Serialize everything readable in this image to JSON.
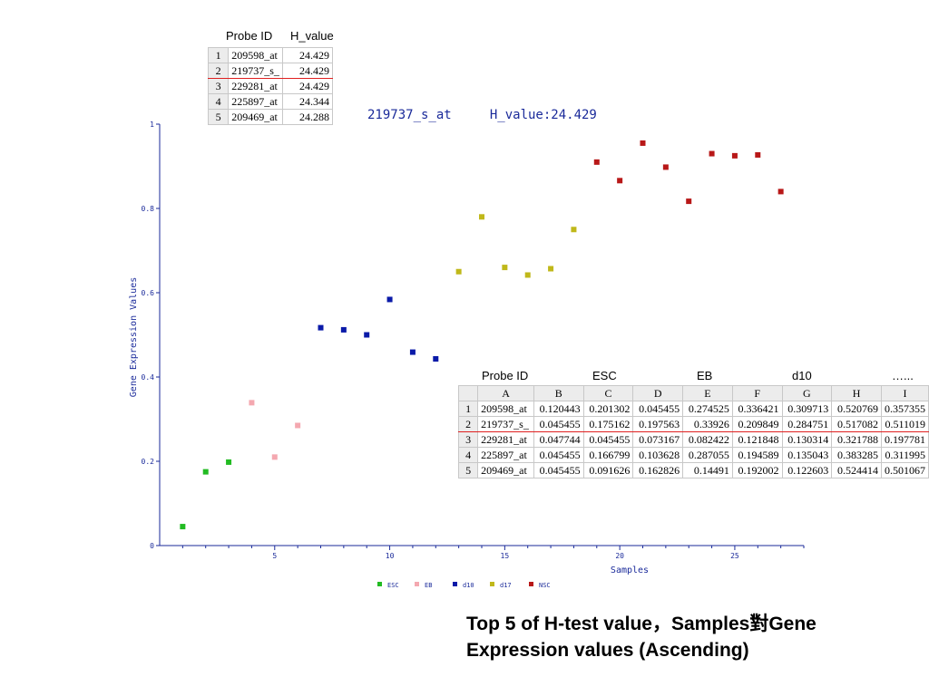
{
  "chart_data": {
    "type": "scatter",
    "annotation": "219737_s_at     H_value:24.429",
    "xlabel": "Samples",
    "ylabel": "Gene Expression Values",
    "xlim": [
      0,
      28
    ],
    "ylim": [
      0,
      1
    ],
    "x_ticks": [
      "5",
      "10",
      "15",
      "20",
      "25"
    ],
    "y_ticks": [
      "0",
      "0.2",
      "0.4",
      "0.6",
      "0.8",
      "1"
    ],
    "legend_position": "bottom",
    "series": [
      {
        "name": "ESC",
        "color": "#22bb22",
        "x": [
          1,
          2,
          3
        ],
        "y": [
          0.045,
          0.175,
          0.198
        ]
      },
      {
        "name": "EB",
        "color": "#f4a8b0",
        "x": [
          4,
          5,
          6
        ],
        "y": [
          0.339,
          0.21,
          0.285
        ]
      },
      {
        "name": "d10",
        "color": "#0a1aa8",
        "x": [
          7,
          8,
          9,
          10,
          11,
          12
        ],
        "y": [
          0.517,
          0.512,
          0.5,
          0.584,
          0.459,
          0.443
        ]
      },
      {
        "name": "d17",
        "color": "#c0b81a",
        "x": [
          13,
          14,
          15,
          16,
          17,
          18
        ],
        "y": [
          0.65,
          0.78,
          0.66,
          0.642,
          0.657,
          0.75
        ]
      },
      {
        "name": "NSC",
        "color": "#b81818",
        "x": [
          19,
          20,
          21,
          22,
          23,
          24,
          25,
          26,
          27
        ],
        "y": [
          0.91,
          0.866,
          0.955,
          0.898,
          0.817,
          0.93,
          0.925,
          0.927,
          0.84
        ]
      }
    ]
  },
  "top_table": {
    "headers": [
      "Probe ID",
      "H_value"
    ],
    "rows": [
      {
        "n": "1",
        "probe": "209598_at",
        "h": "24.429"
      },
      {
        "n": "2",
        "probe": "219737_s_",
        "h": "24.429"
      },
      {
        "n": "3",
        "probe": "229281_at",
        "h": "24.429"
      },
      {
        "n": "4",
        "probe": "225897_at",
        "h": "24.344"
      },
      {
        "n": "5",
        "probe": "209469_at",
        "h": "24.288"
      }
    ]
  },
  "bottom_table": {
    "group_labels": [
      "Probe ID",
      "ESC",
      "EB",
      "d10",
      "…..."
    ],
    "col_letters": [
      "A",
      "B",
      "C",
      "D",
      "E",
      "F",
      "G",
      "H",
      "I"
    ],
    "rows": [
      {
        "n": "1",
        "cells": [
          "209598_at",
          "0.120443",
          "0.201302",
          "0.045455",
          "0.274525",
          "0.336421",
          "0.309713",
          "0.520769",
          "0.357355"
        ]
      },
      {
        "n": "2",
        "cells": [
          "219737_s_",
          "0.045455",
          "0.175162",
          "0.197563",
          "0.33926",
          "0.209849",
          "0.284751",
          "0.517082",
          "0.511019"
        ]
      },
      {
        "n": "3",
        "cells": [
          "229281_at",
          "0.047744",
          "0.045455",
          "0.073167",
          "0.082422",
          "0.121848",
          "0.130314",
          "0.321788",
          "0.197781"
        ]
      },
      {
        "n": "4",
        "cells": [
          "225897_at",
          "0.045455",
          "0.166799",
          "0.103628",
          "0.287055",
          "0.194589",
          "0.135043",
          "0.383285",
          "0.311995"
        ]
      },
      {
        "n": "5",
        "cells": [
          "209469_at",
          "0.045455",
          "0.091626",
          "0.162826",
          "0.14491",
          "0.192002",
          "0.122603",
          "0.524414",
          "0.501067"
        ]
      }
    ]
  },
  "caption": {
    "line1": "Top 5 of H-test value，Samples對Gene",
    "line2": "Expression values (Ascending)"
  }
}
